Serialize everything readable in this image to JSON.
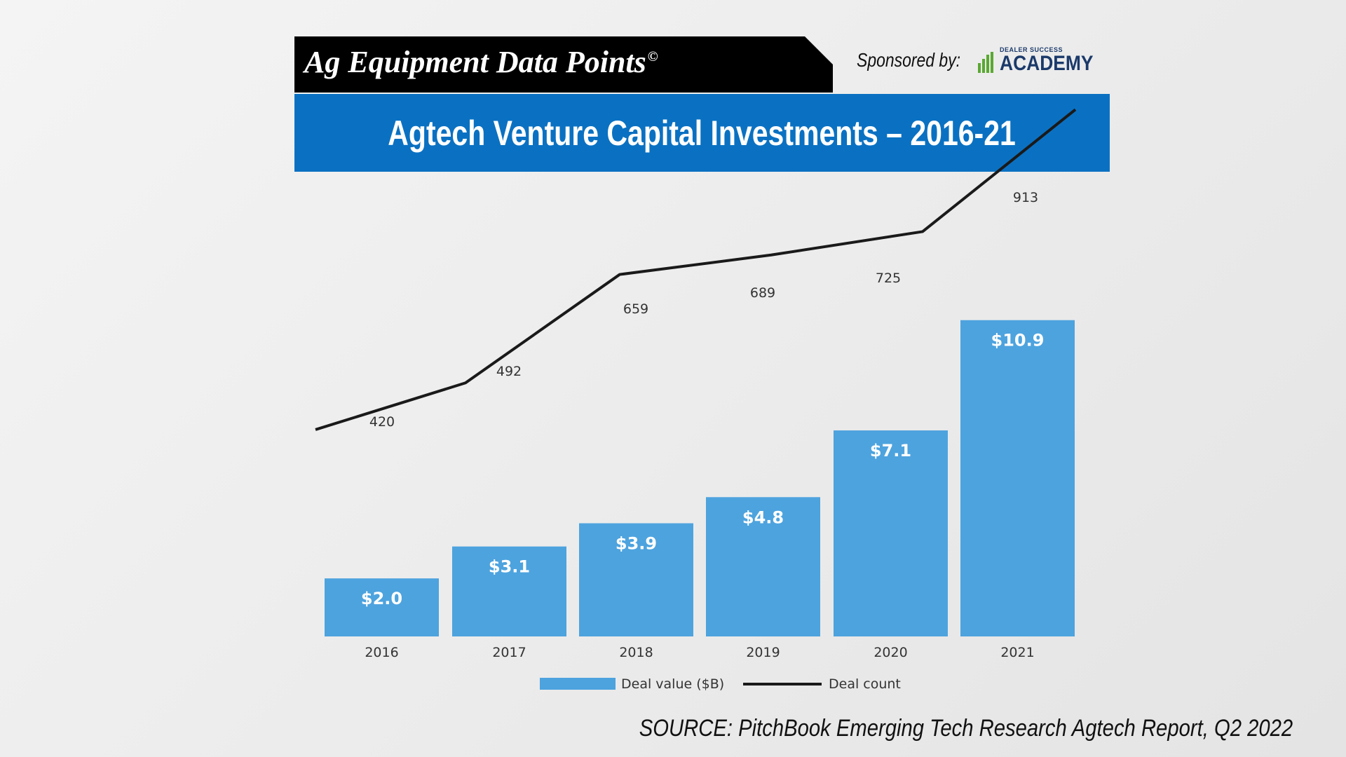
{
  "header": {
    "brand_title": "Ag Equipment Data Points",
    "brand_mark": "©",
    "sponsor_label": "Sponsored by:",
    "sponsor_logo_small": "DEALER SUCCESS",
    "sponsor_logo_big": "ACADEMY",
    "logo_icon": "bar-chart-leaf-icon"
  },
  "banner": {
    "title": "Agtech Venture Capital Investments – 2016-21"
  },
  "footer": {
    "source": "SOURCE: PitchBook Emerging Tech Research Agtech Report, Q2 2022"
  },
  "colors": {
    "banner": "#0a71c2",
    "bar": "#4da3de",
    "line": "#1a1a1a",
    "logo_green": "#5aa832",
    "logo_navy": "#1b3a6b"
  },
  "chart_data": {
    "type": "bar",
    "categories": [
      "2016",
      "2017",
      "2018",
      "2019",
      "2020",
      "2021"
    ],
    "series": [
      {
        "name": "Deal value ($B)",
        "type": "bar",
        "values": [
          2.0,
          3.1,
          3.9,
          4.8,
          7.1,
          10.9
        ],
        "labels": [
          "$2.0",
          "$3.1",
          "$3.9",
          "$4.8",
          "$7.1",
          "$10.9"
        ]
      },
      {
        "name": "Deal count",
        "type": "line",
        "values": [
          420,
          492,
          659,
          689,
          725,
          913
        ],
        "labels": [
          "420",
          "492",
          "659",
          "689",
          "725",
          "913"
        ]
      }
    ],
    "legend": "bottom-center",
    "grid": false
  }
}
